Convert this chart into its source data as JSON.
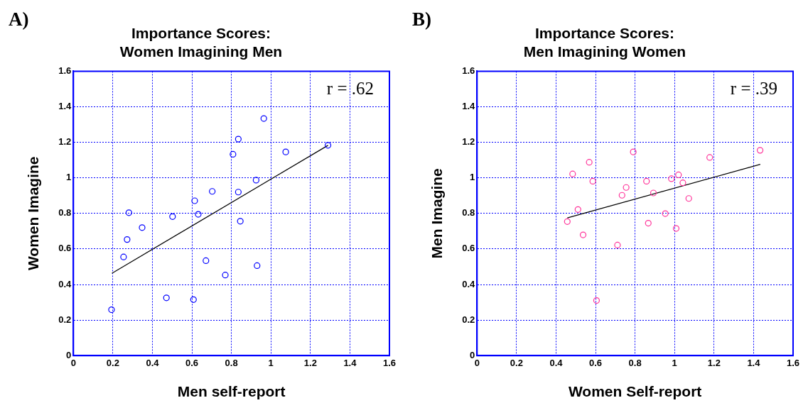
{
  "chart_data": [
    {
      "type": "scatter",
      "title": "Importance Scores:\nWomen Imagining Men",
      "xlabel": "Men self-report",
      "ylabel": "Women Imagine",
      "annotations": [
        "A)",
        "r = .62"
      ],
      "xlim": [
        0,
        1.6
      ],
      "ylim": [
        0,
        1.6
      ],
      "xticks": [
        0,
        0.2,
        0.4,
        0.6,
        0.8,
        1,
        1.2,
        1.4,
        1.6
      ],
      "yticks": [
        0,
        0.2,
        0.4,
        0.6,
        0.8,
        1,
        1.2,
        1.4,
        1.6
      ],
      "grid": true,
      "legend": false,
      "series": [
        {
          "type": "scatter",
          "marker": "circle",
          "color": "#0000ff",
          "x": [
            0.193,
            0.254,
            0.272,
            0.281,
            0.348,
            0.471,
            0.502,
            0.608,
            0.614,
            0.632,
            0.671,
            0.703,
            0.769,
            0.808,
            0.835,
            0.835,
            0.845,
            0.925,
            0.93,
            0.964,
            1.075,
            1.289
          ],
          "values": [
            0.258,
            0.555,
            0.653,
            0.804,
            0.72,
            0.325,
            0.782,
            0.315,
            0.871,
            0.795,
            0.534,
            0.924,
            0.453,
            1.133,
            1.218,
            0.92,
            0.756,
            0.987,
            0.506,
            1.334,
            1.146,
            1.183
          ]
        },
        {
          "type": "line",
          "marker": "none",
          "color": "#000000",
          "x": [
            0.195,
            1.289
          ],
          "values": [
            0.463,
            1.183
          ]
        }
      ]
    },
    {
      "type": "scatter",
      "title": "Importance Scores:\nMen Imagining Women",
      "xlabel": "Women Self-report",
      "ylabel": "Men Imagine",
      "annotations": [
        "B)",
        "r = .39"
      ],
      "xlim": [
        0,
        1.6
      ],
      "ylim": [
        0,
        1.6
      ],
      "xticks": [
        0,
        0.2,
        0.4,
        0.6,
        0.8,
        1,
        1.2,
        1.4,
        1.6
      ],
      "yticks": [
        0,
        0.2,
        0.4,
        0.6,
        0.8,
        1,
        1.2,
        1.4,
        1.6
      ],
      "grid": true,
      "legend": false,
      "series": [
        {
          "type": "scatter",
          "marker": "circle",
          "color": "#ff3399",
          "x": [
            0.457,
            0.484,
            0.511,
            0.537,
            0.568,
            0.586,
            0.605,
            0.711,
            0.734,
            0.755,
            0.791,
            0.858,
            0.867,
            0.893,
            0.953,
            0.984,
            1.008,
            1.02,
            1.042,
            1.072,
            1.178,
            1.433
          ],
          "values": [
            0.754,
            1.022,
            0.822,
            0.679,
            1.088,
            0.981,
            0.31,
            0.622,
            0.902,
            0.946,
            1.146,
            0.981,
            0.745,
            0.915,
            0.799,
            0.995,
            0.715,
            1.017,
            0.972,
            0.884,
            1.115,
            1.155
          ]
        },
        {
          "type": "line",
          "marker": "none",
          "color": "#000000",
          "x": [
            0.457,
            1.434
          ],
          "values": [
            0.775,
            1.076
          ]
        }
      ]
    }
  ]
}
